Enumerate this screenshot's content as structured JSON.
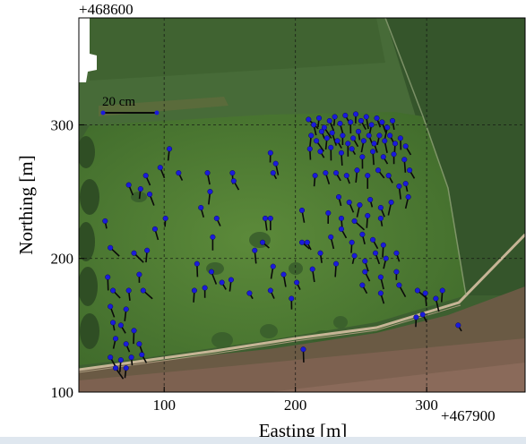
{
  "figure": {
    "x_offset": "+467900",
    "y_offset": "+468600",
    "xlabel": "Easting [m]",
    "ylabel": "Northing [m]",
    "scalebar_label": "20 cm",
    "colors": {
      "dot": "#1a1adc",
      "tail": "#0a0a0a",
      "grass": "#4e7a34",
      "field_dark": "#34512a",
      "soil": "#7a5a4c",
      "track": "#c9b99a"
    }
  },
  "chart_data": {
    "type": "scatter",
    "title": "",
    "xlabel": "Easting [m]",
    "ylabel": "Northing [m]",
    "x_offset": "+467900",
    "y_offset": "+468600",
    "xlim": [
      35,
      375
    ],
    "ylim": [
      100,
      380
    ],
    "x_ticks": [
      100,
      200,
      300
    ],
    "y_ticks": [
      100,
      200,
      300
    ],
    "x_tick_labels": [
      "100",
      "200",
      "300"
    ],
    "y_tick_labels": [
      "100",
      "200",
      "300"
    ],
    "grid": true,
    "background": "aerial-orthophoto",
    "scale_bar": {
      "label": "20 cm"
    },
    "points": [
      [
        210,
        304
      ],
      [
        214,
        300
      ],
      [
        218,
        305
      ],
      [
        222,
        298
      ],
      [
        226,
        303
      ],
      [
        230,
        306
      ],
      [
        234,
        301
      ],
      [
        238,
        307
      ],
      [
        242,
        302
      ],
      [
        246,
        308
      ],
      [
        250,
        303
      ],
      [
        254,
        306
      ],
      [
        258,
        300
      ],
      [
        262,
        305
      ],
      [
        266,
        302
      ],
      [
        270,
        298
      ],
      [
        274,
        303
      ],
      [
        212,
        292
      ],
      [
        216,
        288
      ],
      [
        220,
        295
      ],
      [
        224,
        290
      ],
      [
        228,
        294
      ],
      [
        232,
        288
      ],
      [
        236,
        292
      ],
      [
        240,
        286
      ],
      [
        244,
        290
      ],
      [
        248,
        295
      ],
      [
        252,
        288
      ],
      [
        256,
        292
      ],
      [
        260,
        286
      ],
      [
        264,
        292
      ],
      [
        268,
        288
      ],
      [
        272,
        292
      ],
      [
        276,
        286
      ],
      [
        280,
        290
      ],
      [
        284,
        284
      ],
      [
        211,
        282
      ],
      [
        219,
        280
      ],
      [
        227,
        283
      ],
      [
        235,
        279
      ],
      [
        243,
        282
      ],
      [
        251,
        276
      ],
      [
        259,
        280
      ],
      [
        267,
        276
      ],
      [
        275,
        278
      ],
      [
        283,
        274
      ],
      [
        287,
        266
      ],
      [
        284,
        256
      ],
      [
        286,
        246
      ],
      [
        279,
        254
      ],
      [
        271,
        262
      ],
      [
        263,
        266
      ],
      [
        255,
        262
      ],
      [
        247,
        266
      ],
      [
        239,
        262
      ],
      [
        231,
        264
      ],
      [
        223,
        264
      ],
      [
        215,
        262
      ],
      [
        233,
        246
      ],
      [
        241,
        242
      ],
      [
        249,
        240
      ],
      [
        257,
        244
      ],
      [
        265,
        238
      ],
      [
        273,
        242
      ],
      [
        225,
        234
      ],
      [
        235,
        230
      ],
      [
        245,
        228
      ],
      [
        255,
        232
      ],
      [
        265,
        230
      ],
      [
        227,
        216
      ],
      [
        235,
        222
      ],
      [
        243,
        212
      ],
      [
        251,
        218
      ],
      [
        259,
        214
      ],
      [
        267,
        210
      ],
      [
        245,
        202
      ],
      [
        253,
        198
      ],
      [
        261,
        204
      ],
      [
        269,
        200
      ],
      [
        277,
        204
      ],
      [
        253,
        190
      ],
      [
        265,
        186
      ],
      [
        277,
        190
      ],
      [
        265,
        174
      ],
      [
        279,
        180
      ],
      [
        209,
        212
      ],
      [
        219,
        204
      ],
      [
        231,
        196
      ],
      [
        251,
        180
      ],
      [
        55,
        228
      ],
      [
        59,
        208
      ],
      [
        57,
        186
      ],
      [
        73,
        176
      ],
      [
        61,
        176
      ],
      [
        59,
        164
      ],
      [
        71,
        162
      ],
      [
        61,
        152
      ],
      [
        67,
        150
      ],
      [
        77,
        146
      ],
      [
        63,
        140
      ],
      [
        71,
        136
      ],
      [
        59,
        126
      ],
      [
        67,
        124
      ],
      [
        75,
        126
      ],
      [
        83,
        128
      ],
      [
        63,
        118
      ],
      [
        71,
        118
      ],
      [
        81,
        136
      ],
      [
        77,
        204
      ],
      [
        87,
        206
      ],
      [
        81,
        188
      ],
      [
        84,
        176
      ],
      [
        73,
        255
      ],
      [
        82,
        252
      ],
      [
        86,
        262
      ],
      [
        97,
        268
      ],
      [
        104,
        282
      ],
      [
        111,
        264
      ],
      [
        133,
        264
      ],
      [
        135,
        250
      ],
      [
        128,
        238
      ],
      [
        140,
        230
      ],
      [
        137,
        216
      ],
      [
        89,
        248
      ],
      [
        101,
        230
      ],
      [
        93,
        222
      ],
      [
        125,
        196
      ],
      [
        131,
        178
      ],
      [
        144,
        182
      ],
      [
        136,
        190
      ],
      [
        123,
        176
      ],
      [
        165,
        174
      ],
      [
        183,
        194
      ],
      [
        191,
        188
      ],
      [
        201,
        182
      ],
      [
        197,
        170
      ],
      [
        213,
        192
      ],
      [
        151,
        184
      ],
      [
        175,
        212
      ],
      [
        177,
        230
      ],
      [
        205,
        236
      ],
      [
        205,
        212
      ],
      [
        181,
        176
      ],
      [
        169,
        206
      ],
      [
        181,
        230
      ],
      [
        183,
        264
      ],
      [
        185,
        271
      ],
      [
        206,
        132
      ],
      [
        292,
        156
      ],
      [
        297,
        158
      ],
      [
        307,
        170
      ],
      [
        312,
        176
      ],
      [
        324,
        150
      ],
      [
        293,
        176
      ],
      [
        299,
        174
      ],
      [
        181,
        279
      ],
      [
        152,
        264
      ],
      [
        153,
        258
      ]
    ]
  }
}
